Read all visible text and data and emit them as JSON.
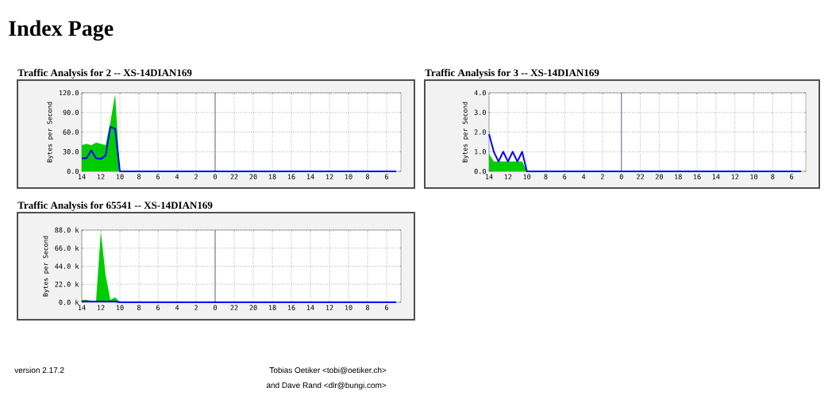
{
  "chart_data": [
    {
      "type": "area",
      "title": "Traffic Analysis for 2 -- XS-14DIAN169",
      "ylabel": "Bytes per Second",
      "annotations": [
        "Index Page"
      ],
      "ylim": [
        0,
        120
      ],
      "categories": [
        "14",
        null,
        null,
        null,
        "12",
        null,
        null,
        null,
        "10",
        null,
        null,
        null,
        "8",
        null,
        null,
        null,
        "6",
        null,
        null,
        null,
        "4",
        null,
        null,
        null,
        "2",
        null,
        null,
        null,
        "0",
        null,
        null,
        null,
        "22",
        null,
        null,
        null,
        "20",
        null,
        null,
        null,
        "18",
        null,
        null,
        null,
        "16",
        null,
        null,
        null,
        "14",
        null,
        null,
        null,
        "12",
        null,
        null,
        null,
        "10",
        null,
        null,
        null,
        "8",
        null,
        null,
        null,
        "6",
        null,
        null
      ],
      "yticks": [
        {
          "value": 0,
          "label": "0.0"
        },
        {
          "value": 30,
          "label": "30.0"
        },
        {
          "value": 60,
          "label": "60.0"
        },
        {
          "value": 90,
          "label": "90.0"
        },
        {
          "value": 120,
          "label": "120.0"
        }
      ],
      "grid": true,
      "ref_lines": [
        {
          "axis": "x",
          "value": "0",
          "color": "#666699"
        }
      ],
      "series": [
        {
          "color": "#00cc00",
          "values": [
            40,
            42,
            40,
            44,
            42,
            40,
            75,
            118,
            0,
            0,
            0,
            0,
            0,
            0,
            0,
            0,
            0,
            0,
            0,
            0,
            0,
            0,
            0,
            0,
            0,
            0,
            0,
            0,
            0,
            0,
            0,
            0,
            0,
            0,
            0,
            0,
            0,
            0,
            0,
            0,
            0,
            0,
            0,
            0,
            0,
            0,
            0,
            0,
            0,
            0,
            0,
            0,
            0,
            0,
            0,
            0,
            0,
            0,
            0,
            0,
            0,
            0,
            0,
            0,
            0,
            0,
            0
          ]
        },
        {
          "type": "line",
          "color": "#0000ff",
          "values": [
            20,
            20,
            32,
            20,
            19,
            24,
            68,
            65,
            0,
            0,
            0,
            0,
            0,
            0,
            0,
            0,
            0,
            0,
            0,
            0,
            0,
            0,
            0,
            0,
            0,
            0,
            0,
            0,
            0,
            0,
            0,
            0,
            0,
            0,
            0,
            0,
            0,
            0,
            0,
            0,
            0,
            0,
            0,
            0,
            0,
            0,
            0,
            0,
            0,
            0,
            0,
            0,
            0,
            0,
            0,
            0,
            0,
            0,
            0,
            0,
            0,
            0,
            0,
            0,
            0,
            0,
            0
          ]
        }
      ]
    },
    {
      "type": "area",
      "title": "Traffic Analysis for 3 -- XS-14DIAN169",
      "ylabel": "Bytes per Second",
      "ylim": [
        0,
        4
      ],
      "categories": [
        "14",
        null,
        null,
        null,
        "12",
        null,
        null,
        null,
        "10",
        null,
        null,
        null,
        "8",
        null,
        null,
        null,
        "6",
        null,
        null,
        null,
        "4",
        null,
        null,
        null,
        "2",
        null,
        null,
        null,
        "0",
        null,
        null,
        null,
        "22",
        null,
        null,
        null,
        "20",
        null,
        null,
        null,
        "18",
        null,
        null,
        null,
        "16",
        null,
        null,
        null,
        "14",
        null,
        null,
        null,
        "12",
        null,
        null,
        null,
        "10",
        null,
        null,
        null,
        "8",
        null,
        null,
        null,
        "6",
        null,
        null
      ],
      "yticks": [
        {
          "value": 0,
          "label": "0.0"
        },
        {
          "value": 1,
          "label": "1.0"
        },
        {
          "value": 2,
          "label": "2.0"
        },
        {
          "value": 3,
          "label": "3.0"
        },
        {
          "value": 4,
          "label": "4.0"
        }
      ],
      "grid": true,
      "ref_lines": [
        {
          "axis": "x",
          "value": "0",
          "color": "#666699"
        }
      ],
      "series": [
        {
          "color": "#00cc00",
          "values": [
            0.9,
            0.5,
            0.5,
            0.5,
            0.5,
            0.5,
            0.5,
            0.5,
            0,
            0,
            0,
            0,
            0,
            0,
            0,
            0,
            0,
            0,
            0,
            0,
            0,
            0,
            0,
            0,
            0,
            0,
            0,
            0,
            0,
            0,
            0,
            0,
            0,
            0,
            0,
            0,
            0,
            0,
            0,
            0,
            0,
            0,
            0,
            0,
            0,
            0,
            0,
            0,
            0,
            0,
            0,
            0,
            0,
            0,
            0,
            0,
            0,
            0,
            0,
            0,
            0,
            0,
            0,
            0,
            0,
            0,
            0
          ]
        },
        {
          "type": "line",
          "color": "#0000ff",
          "values": [
            1.9,
            1.0,
            0.5,
            1.0,
            0.5,
            1.0,
            0.5,
            1.0,
            0,
            0,
            0,
            0,
            0,
            0,
            0,
            0,
            0,
            0,
            0,
            0,
            0,
            0,
            0,
            0,
            0,
            0,
            0,
            0,
            0,
            0,
            0,
            0,
            0,
            0,
            0,
            0,
            0,
            0,
            0,
            0,
            0,
            0,
            0,
            0,
            0,
            0,
            0,
            0,
            0,
            0,
            0,
            0,
            0,
            0,
            0,
            0,
            0,
            0,
            0,
            0,
            0,
            0,
            0,
            0,
            0,
            0,
            0
          ]
        }
      ]
    },
    {
      "type": "area",
      "title": "Traffic Analysis for 65541 -- XS-14DIAN169",
      "ylabel": "Bytes per Second",
      "annotations": [
        "version 2.17.2",
        "Tobias Oetiker <tobi@oetiker.ch>",
        "and Dave Rand <dlr@bungi.com>"
      ],
      "ylim": [
        0,
        88000
      ],
      "categories": [
        "14",
        null,
        null,
        null,
        "12",
        null,
        null,
        null,
        "10",
        null,
        null,
        null,
        "8",
        null,
        null,
        null,
        "6",
        null,
        null,
        null,
        "4",
        null,
        null,
        null,
        "2",
        null,
        null,
        null,
        "0",
        null,
        null,
        null,
        "22",
        null,
        null,
        null,
        "20",
        null,
        null,
        null,
        "18",
        null,
        null,
        null,
        "16",
        null,
        null,
        null,
        "14",
        null,
        null,
        null,
        "12",
        null,
        null,
        null,
        "10",
        null,
        null,
        null,
        "8",
        null,
        null,
        null,
        "6",
        null,
        null
      ],
      "yticks": [
        {
          "value": 0,
          "label": "0.0 k"
        },
        {
          "value": 22000,
          "label": "22.0 k"
        },
        {
          "value": 44000,
          "label": "44.0 k"
        },
        {
          "value": 66000,
          "label": "66.0 k"
        },
        {
          "value": 88000,
          "label": "88.0 k"
        }
      ],
      "grid": true,
      "ref_lines": [
        {
          "axis": "x",
          "value": "0",
          "color": "#666699"
        }
      ],
      "series": [
        {
          "color": "#00cc00",
          "values": [
            3000,
            3000,
            2000,
            2000,
            86000,
            33000,
            3000,
            6000,
            0,
            0,
            0,
            0,
            0,
            0,
            0,
            0,
            0,
            0,
            0,
            0,
            0,
            0,
            0,
            0,
            0,
            0,
            0,
            0,
            0,
            0,
            0,
            0,
            0,
            0,
            0,
            0,
            0,
            0,
            0,
            0,
            0,
            0,
            0,
            0,
            0,
            0,
            0,
            0,
            0,
            0,
            0,
            0,
            0,
            0,
            0,
            0,
            0,
            0,
            0,
            0,
            0,
            0,
            0,
            0,
            0,
            0,
            0
          ]
        },
        {
          "type": "line",
          "color": "#0000ff",
          "values": [
            1000,
            1000,
            1000,
            1000,
            1000,
            1000,
            1000,
            1000,
            0,
            0,
            0,
            0,
            0,
            0,
            0,
            0,
            0,
            0,
            0,
            0,
            0,
            0,
            0,
            0,
            0,
            0,
            0,
            0,
            0,
            0,
            0,
            0,
            0,
            0,
            0,
            0,
            0,
            0,
            0,
            0,
            0,
            0,
            0,
            0,
            0,
            0,
            0,
            0,
            0,
            0,
            0,
            0,
            0,
            0,
            0,
            0,
            0,
            0,
            0,
            0,
            0,
            0,
            0,
            0,
            0,
            0,
            0
          ]
        }
      ]
    }
  ]
}
